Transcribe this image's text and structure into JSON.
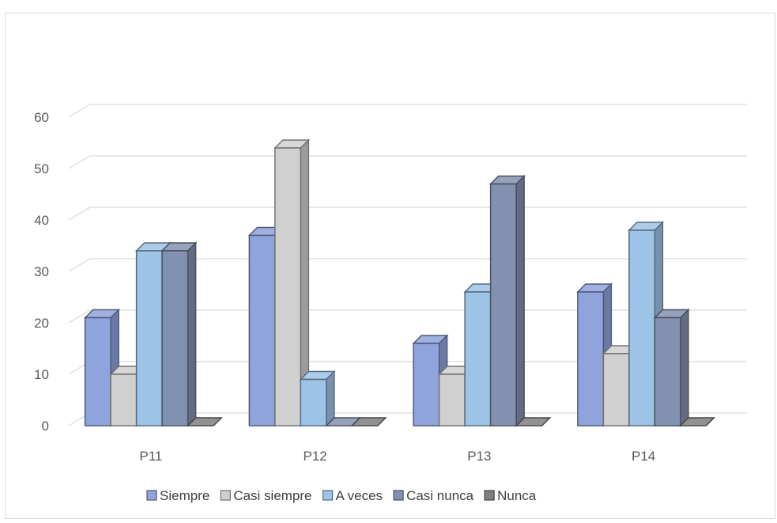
{
  "chart_data": {
    "type": "bar",
    "categories": [
      "P11",
      "P12",
      "P13",
      "P14"
    ],
    "series": [
      {
        "name": "Siempre",
        "values": [
          21,
          37,
          16,
          26
        ],
        "color": "#8fa3dc"
      },
      {
        "name": "Casi siempre",
        "values": [
          10,
          54,
          10,
          14
        ],
        "color": "#d0d0d0"
      },
      {
        "name": "A veces",
        "values": [
          34,
          9,
          26,
          38
        ],
        "color": "#9dc3e6"
      },
      {
        "name": "Casi nunca",
        "values": [
          34,
          0,
          47,
          21
        ],
        "color": "#8391b0"
      },
      {
        "name": "Nunca",
        "values": [
          0,
          0,
          0,
          0
        ],
        "color": "#7f7f7f"
      }
    ],
    "y_ticks": [
      "0",
      "10",
      "20",
      "30",
      "40",
      "50",
      "60"
    ],
    "ylim": [
      0,
      60
    ],
    "grid": true,
    "legend_position": "bottom",
    "three_d": true
  }
}
